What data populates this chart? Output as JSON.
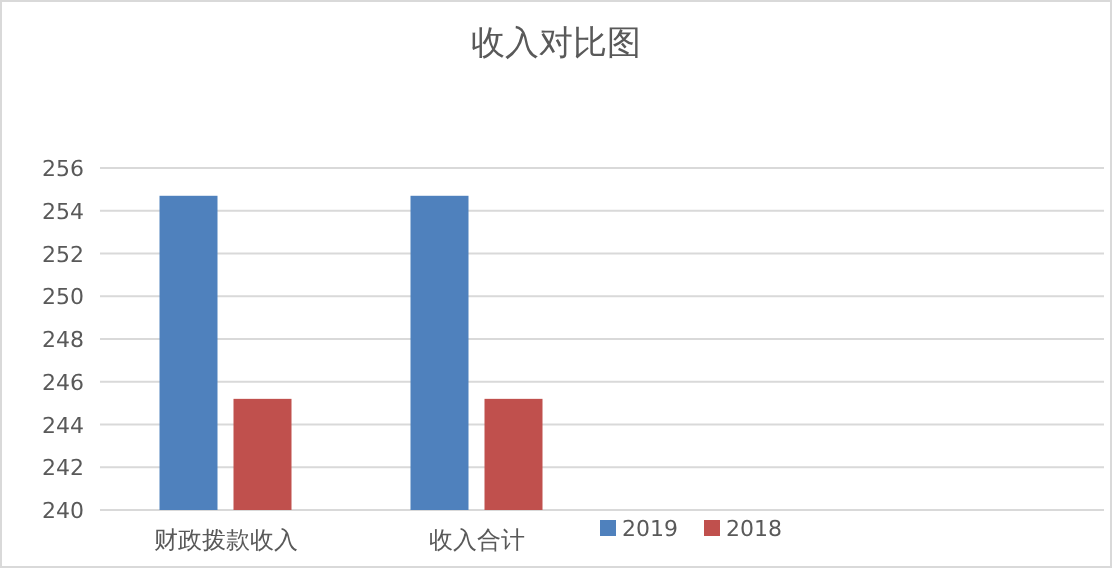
{
  "chart_data": {
    "type": "bar",
    "title": "收入对比图",
    "categories": [
      "财政拨款收入",
      "收入合计",
      null,
      null
    ],
    "series": [
      {
        "name": "2019",
        "color": "#4f81bd",
        "values": [
          254.7,
          254.7,
          null,
          null
        ]
      },
      {
        "name": "2018",
        "color": "#c0504d",
        "values": [
          245.2,
          245.2,
          null,
          null
        ]
      }
    ],
    "ylim": [
      240,
      256
    ],
    "yticks": [
      240,
      242,
      244,
      246,
      248,
      250,
      252,
      254,
      256
    ],
    "grid": "y",
    "legend": "bottom"
  }
}
